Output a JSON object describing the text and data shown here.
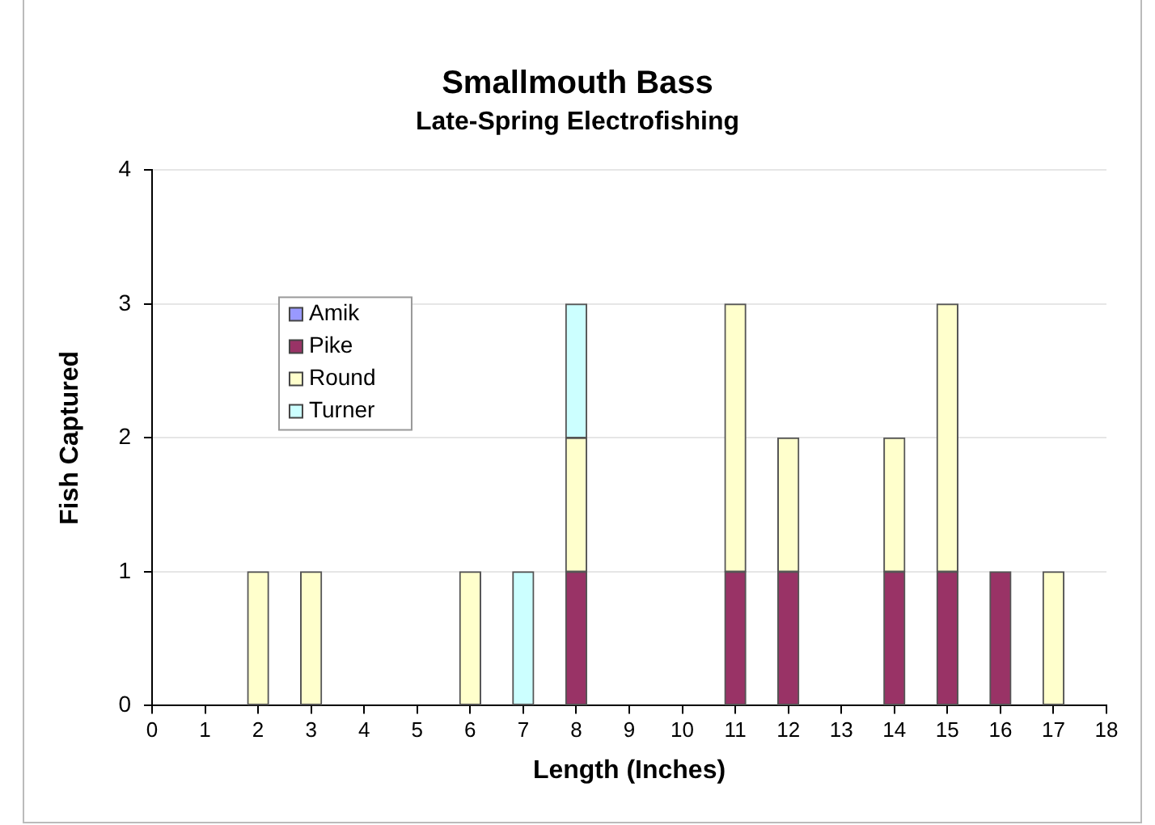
{
  "chart_data": {
    "type": "bar",
    "title": "Smallmouth Bass",
    "subtitle": "Late-Spring Electrofishing",
    "xlabel": "Length (Inches)",
    "ylabel": "Fish Captured",
    "x": [
      2,
      3,
      6,
      7,
      8,
      11,
      12,
      14,
      15,
      16,
      17
    ],
    "series": [
      {
        "name": "Amik",
        "color": "#9999ff",
        "values": [
          null,
          null,
          null,
          null,
          null,
          null,
          null,
          null,
          null,
          null,
          null
        ]
      },
      {
        "name": "Pike",
        "color": "#993366",
        "values": [
          null,
          null,
          null,
          null,
          1,
          1,
          1,
          1,
          1,
          1,
          null
        ]
      },
      {
        "name": "Round",
        "color": "#ffffcc",
        "values": [
          1,
          1,
          1,
          null,
          1,
          2,
          1,
          1,
          2,
          null,
          1
        ]
      },
      {
        "name": "Turner",
        "color": "#ccffff",
        "values": [
          null,
          null,
          null,
          1,
          1,
          null,
          null,
          null,
          null,
          null,
          null
        ]
      }
    ],
    "stacked": true,
    "xlim": [
      0,
      18
    ],
    "xticks": [
      0,
      1,
      2,
      3,
      4,
      5,
      6,
      7,
      8,
      9,
      10,
      11,
      12,
      13,
      14,
      15,
      16,
      17,
      18
    ],
    "ylim": [
      0,
      4
    ],
    "yticks": [
      0,
      1,
      2,
      3,
      4
    ],
    "grid": "y",
    "legend": "top left"
  }
}
